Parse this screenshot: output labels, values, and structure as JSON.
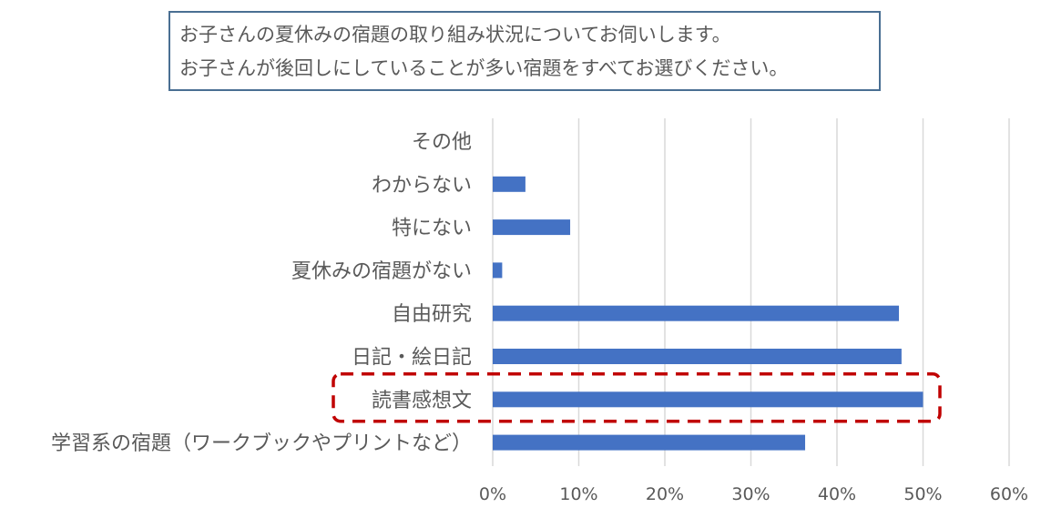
{
  "question": {
    "line1": "お子さんの夏休みの宿題の取り組み状況についてお伺いします。",
    "line2": "お子さんが後回しにしていることが多い宿題をすべてお選びください。"
  },
  "chart_data": {
    "type": "bar",
    "orientation": "horizontal",
    "categories": [
      "その他",
      "わからない",
      "特にない",
      "夏休みの宿題がない",
      "自由研究",
      "日記・絵日記",
      "読書感想文",
      "学習系の宿題（ワークブックやプリントなど）"
    ],
    "values": [
      0,
      3.8,
      9.0,
      1.1,
      47.2,
      47.5,
      50.0,
      36.3
    ],
    "xlim": [
      0,
      60
    ],
    "xticks": [
      "0%",
      "10%",
      "20%",
      "30%",
      "40%",
      "50%",
      "60%"
    ],
    "grid": true,
    "bar_color": "#4472c4",
    "highlight": {
      "category": "読書感想文",
      "style": "dashed",
      "color": "#c00000"
    }
  }
}
